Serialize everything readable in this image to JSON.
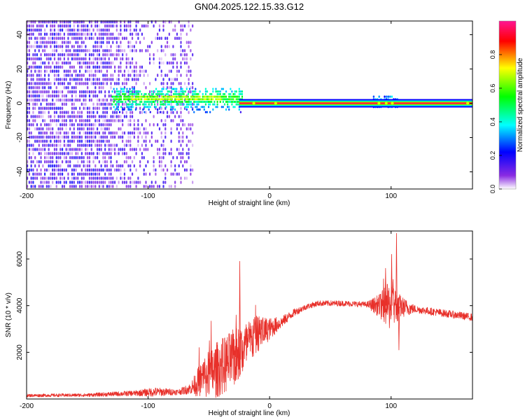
{
  "title": "GN04.2025.122.15.33.G12",
  "chart_data": [
    {
      "type": "heatmap",
      "xlabel": "Height of straight line (km)",
      "ylabel": "Frequency (Hz)",
      "xlim": [
        -200,
        167
      ],
      "ylim": [
        -50,
        48
      ],
      "xticks": [
        -200,
        -100,
        0,
        100
      ],
      "xticklabels": [
        "-200",
        "-100",
        "0",
        "100"
      ],
      "yticks": [
        -40,
        -20,
        0,
        20,
        40
      ],
      "yticklabels": [
        "-40",
        "-20",
        "0",
        "20",
        "40"
      ],
      "colorbar": {
        "label": "Normalized spectral amplitude",
        "range": [
          0,
          1
        ],
        "ticks": [
          0,
          0.2,
          0.4,
          0.6,
          0.8
        ],
        "ticklabels": [
          "0.0",
          "0.2",
          "0.4",
          "0.6",
          "0.8"
        ],
        "colors": [
          "#ffffff",
          "#8a2be2",
          "#0000ff",
          "#00ffff",
          "#00ff00",
          "#ffff00",
          "#ff0000",
          "#ff1493"
        ]
      },
      "features": [
        {
          "x_range": [
            -200,
            -65
          ],
          "freq_range": [
            -50,
            48
          ],
          "level": 0.2,
          "description": "broadband noise"
        },
        {
          "x_range": [
            -130,
            -25
          ],
          "freq_range": [
            -5,
            8
          ],
          "level": 0.5,
          "description": "emerging carrier"
        },
        {
          "x_range": [
            -25,
            167
          ],
          "freq": 0,
          "level": 0.95,
          "description": "carrier line"
        },
        {
          "x_range": [
            85,
            105
          ],
          "freq_range": [
            -3,
            4
          ],
          "level": 0.4,
          "description": "interference"
        }
      ]
    },
    {
      "type": "line",
      "xlabel": "Height of straight line (km)",
      "ylabel": "SNR (10 * v/v)",
      "xlim": [
        -200,
        167
      ],
      "ylim": [
        0,
        7200
      ],
      "xticks": [
        -200,
        -100,
        0,
        100
      ],
      "xticklabels": [
        "-200",
        "-100",
        "0",
        "100"
      ],
      "yticks": [
        2000,
        4000,
        6000
      ],
      "yticklabels": [
        "2000",
        "4000",
        "6000"
      ],
      "line_color": "#e8302a",
      "envelope": [
        {
          "x": -200,
          "y": 150,
          "spread": 80
        },
        {
          "x": -150,
          "y": 170,
          "spread": 90
        },
        {
          "x": -110,
          "y": 250,
          "spread": 150
        },
        {
          "x": -95,
          "y": 300,
          "spread": 250
        },
        {
          "x": -75,
          "y": 300,
          "spread": 150
        },
        {
          "x": -65,
          "y": 450,
          "spread": 300
        },
        {
          "x": -55,
          "y": 900,
          "spread": 1100
        },
        {
          "x": -45,
          "y": 1200,
          "spread": 1500
        },
        {
          "x": -30,
          "y": 1700,
          "spread": 1600
        },
        {
          "x": -20,
          "y": 2200,
          "spread": 1400
        },
        {
          "x": -10,
          "y": 2800,
          "spread": 1000
        },
        {
          "x": 0,
          "y": 3000,
          "spread": 600
        },
        {
          "x": 10,
          "y": 3300,
          "spread": 300
        },
        {
          "x": 20,
          "y": 3700,
          "spread": 200
        },
        {
          "x": 30,
          "y": 3950,
          "spread": 150
        },
        {
          "x": 40,
          "y": 4100,
          "spread": 150
        },
        {
          "x": 60,
          "y": 4100,
          "spread": 150
        },
        {
          "x": 80,
          "y": 4050,
          "spread": 150
        },
        {
          "x": 90,
          "y": 4000,
          "spread": 600
        },
        {
          "x": 100,
          "y": 4000,
          "spread": 1400
        },
        {
          "x": 108,
          "y": 3950,
          "spread": 600
        },
        {
          "x": 120,
          "y": 3850,
          "spread": 200
        },
        {
          "x": 140,
          "y": 3700,
          "spread": 200
        },
        {
          "x": 167,
          "y": 3500,
          "spread": 200
        }
      ],
      "spikes": [
        {
          "x": -25,
          "y": 5900
        },
        {
          "x": -50,
          "y": 2500
        },
        {
          "x": -28,
          "y": 3600
        },
        {
          "x": 95,
          "y": 5600
        },
        {
          "x": 100,
          "y": 6200
        },
        {
          "x": 104,
          "y": 7100
        },
        {
          "x": 106,
          "y": 2100
        }
      ]
    }
  ]
}
